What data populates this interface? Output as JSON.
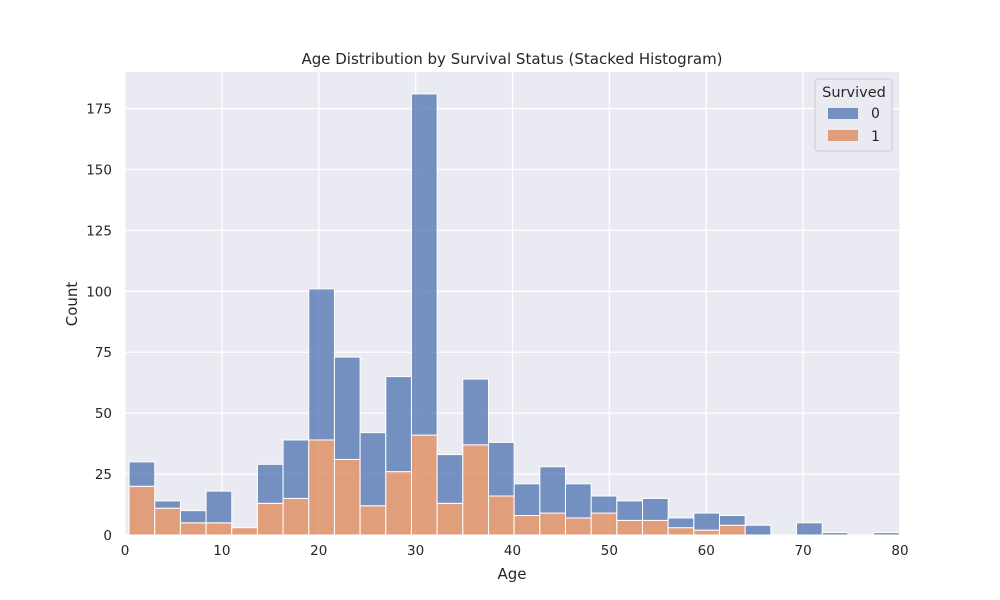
{
  "chart_data": {
    "type": "bar",
    "subtype": "stacked-histogram",
    "title": "Age Distribution by Survival Status (Stacked Histogram)",
    "xlabel": "Age",
    "ylabel": "Count",
    "xlim": [
      0,
      80
    ],
    "ylim": [
      0,
      190
    ],
    "xticks": [
      "0",
      "10",
      "20",
      "30",
      "40",
      "50",
      "60",
      "70",
      "80"
    ],
    "yticks": [
      "0",
      "25",
      "50",
      "75",
      "100",
      "125",
      "150",
      "175"
    ],
    "bin_edges": [
      0.42,
      3.07,
      5.72,
      8.37,
      11.02,
      13.67,
      16.32,
      18.97,
      21.62,
      24.27,
      26.92,
      29.57,
      32.22,
      34.87,
      37.52,
      40.17,
      42.82,
      45.47,
      48.12,
      50.77,
      53.42,
      56.07,
      58.72,
      61.37,
      64.02,
      66.67,
      69.32,
      71.97,
      74.62,
      77.27,
      79.92
    ],
    "series": [
      {
        "name": "0",
        "values": [
          10,
          3,
          5,
          13,
          0,
          16,
          24,
          62,
          42,
          30,
          39,
          140,
          20,
          27,
          22,
          13,
          19,
          14,
          7,
          8,
          9,
          4,
          7,
          4,
          4,
          0,
          5,
          1,
          0,
          1
        ]
      },
      {
        "name": "1",
        "values": [
          20,
          11,
          5,
          5,
          3,
          13,
          15,
          39,
          31,
          12,
          26,
          41,
          13,
          37,
          16,
          8,
          9,
          7,
          9,
          6,
          6,
          3,
          2,
          4,
          0,
          0,
          0,
          0,
          0,
          0
        ]
      }
    ],
    "colors": {
      "0": "#4c72b0",
      "1": "#dd8452"
    },
    "stacked": true,
    "grid": true,
    "legend": {
      "title": "Survived",
      "placement": "top-right",
      "entries": [
        "0",
        "1"
      ]
    }
  }
}
